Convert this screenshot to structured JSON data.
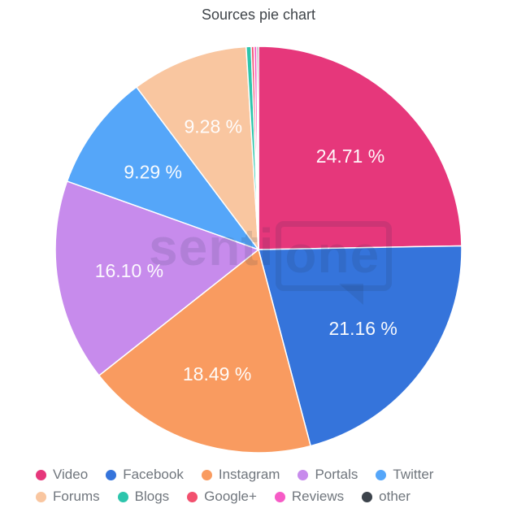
{
  "title": "Sources pie chart",
  "watermark": {
    "prefix": "senti",
    "suffix": "one"
  },
  "chart_data": {
    "type": "pie",
    "title": "Sources pie chart",
    "unit": "%",
    "label_format": "{value} %",
    "label_min_value": 5,
    "start_angle_deg": 0,
    "direction": "clockwise",
    "legend_position": "bottom",
    "slice_border_color": "#ffffff",
    "slices": [
      {
        "label": "Video",
        "value": 24.71,
        "color": "#E6377B",
        "displayed_label": "24.71 %"
      },
      {
        "label": "Facebook",
        "value": 21.16,
        "color": "#3574DB",
        "displayed_label": "21.16 %"
      },
      {
        "label": "Instagram",
        "value": 18.49,
        "color": "#F99B60",
        "displayed_label": "18.49 %"
      },
      {
        "label": "Portals",
        "value": 16.1,
        "color": "#C78BEC",
        "displayed_label": "16.10 %"
      },
      {
        "label": "Twitter",
        "value": 9.29,
        "color": "#55A6F9",
        "displayed_label": "9.29 %"
      },
      {
        "label": "Forums",
        "value": 9.28,
        "color": "#F9C6A0",
        "displayed_label": "9.28 %"
      },
      {
        "label": "Blogs",
        "value": 0.4,
        "color": "#2DC5AC",
        "displayed_label": ""
      },
      {
        "label": "Google+",
        "value": 0.22,
        "color": "#F2506E",
        "displayed_label": ""
      },
      {
        "label": "Reviews",
        "value": 0.22,
        "color": "#F65BC6",
        "displayed_label": ""
      },
      {
        "label": "other",
        "value": 0.13,
        "color": "#3C434B",
        "displayed_label": ""
      }
    ]
  },
  "colors": {
    "title_text": "#3f4449",
    "legend_text": "#70767d",
    "background": "#ffffff"
  }
}
